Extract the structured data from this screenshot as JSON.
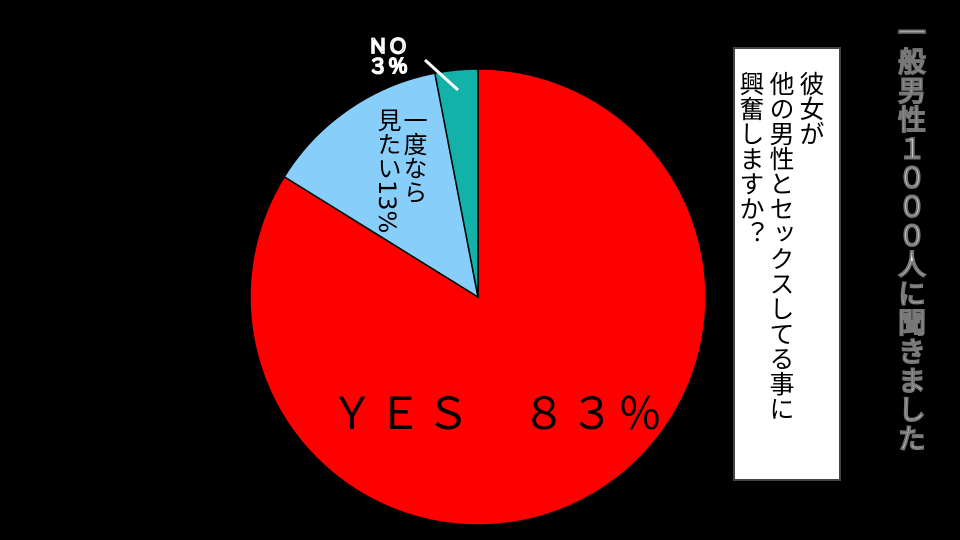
{
  "title": "一般男性１０００人に聞きました",
  "question": [
    "彼女が",
    "他の男性とセックスしてる事に",
    "興奮しますか？"
  ],
  "chart_data": {
    "type": "pie",
    "title": "一般男性１０００人に聞きました",
    "categories": [
      "YES",
      "一度なら見たい",
      "NO"
    ],
    "values": [
      83,
      13,
      3
    ],
    "colors": [
      "#ff0000",
      "#87cefa",
      "#13b2a8"
    ],
    "labels": {
      "yes": "ＹＥＳ　８３％",
      "blue": [
        "一度なら",
        "見たい13%"
      ],
      "no": [
        "ＮＯ",
        "３％"
      ]
    }
  }
}
